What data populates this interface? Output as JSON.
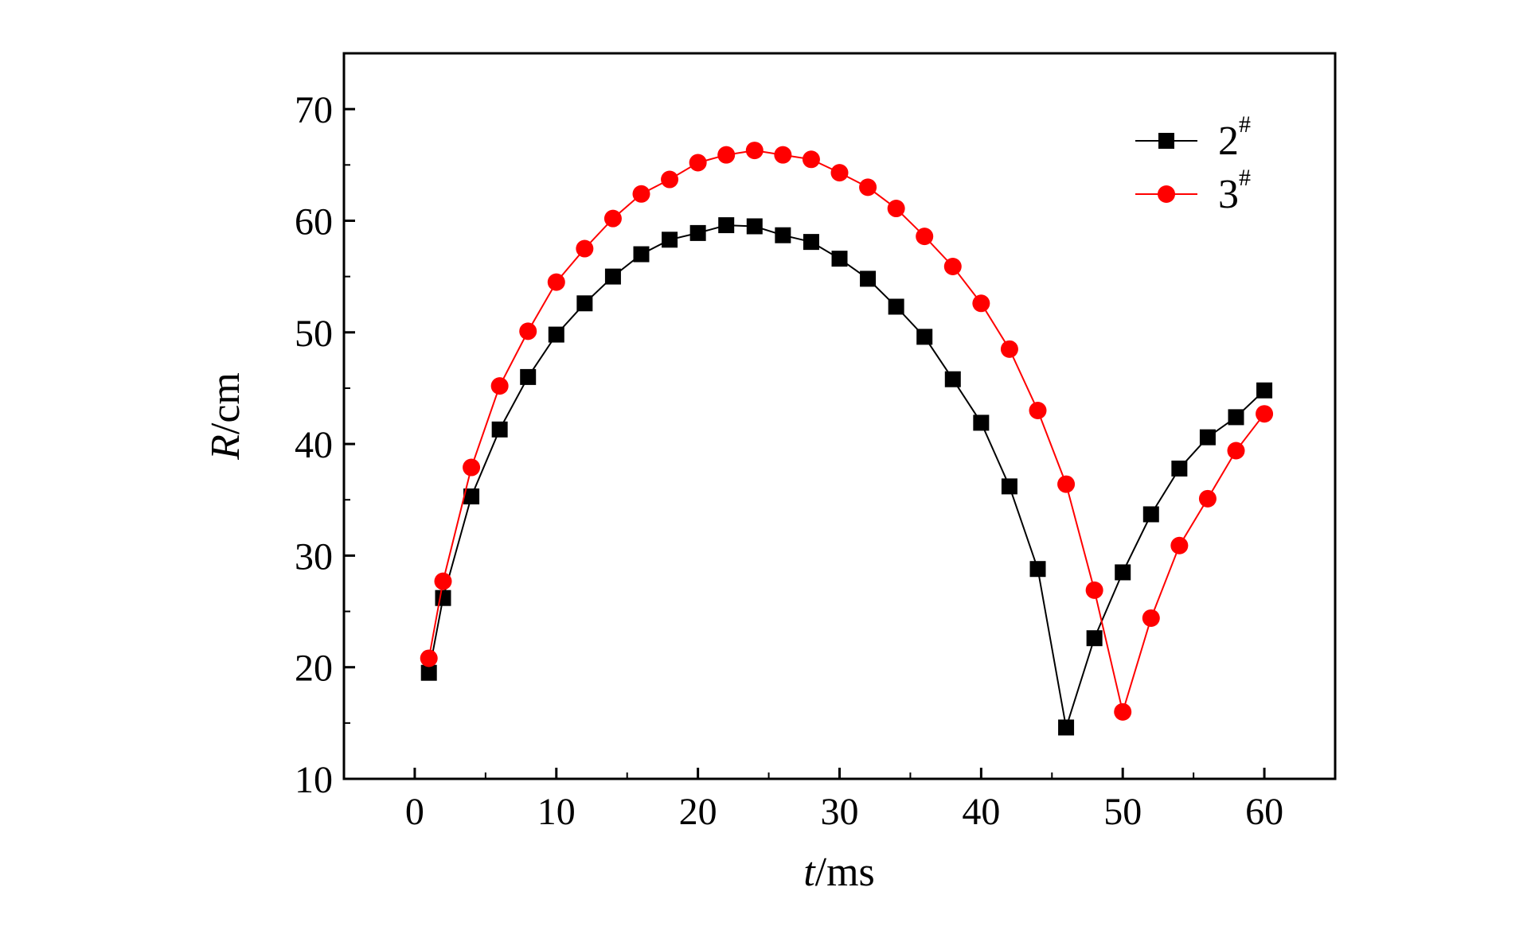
{
  "chart_data": {
    "type": "line",
    "xlabel": {
      "italic": "t",
      "rest": "/ms"
    },
    "ylabel": {
      "italic": "R",
      "rest": "/cm"
    },
    "xlim": [
      -5,
      65
    ],
    "ylim": [
      10,
      75
    ],
    "xticks": [
      0,
      10,
      20,
      30,
      40,
      50,
      60
    ],
    "yticks": [
      10,
      20,
      30,
      40,
      50,
      60,
      70
    ],
    "grid": false,
    "legend_position": "top-right",
    "series": [
      {
        "name": "2",
        "name_sup": "#",
        "color": "#000000",
        "marker": "square",
        "x": [
          1,
          2,
          4,
          6,
          8,
          10,
          12,
          14,
          16,
          18,
          20,
          22,
          24,
          26,
          28,
          30,
          32,
          34,
          36,
          38,
          40,
          42,
          44,
          46,
          48,
          50,
          52,
          54,
          56,
          58,
          60
        ],
        "y": [
          19.5,
          26.2,
          35.3,
          41.3,
          46.0,
          49.8,
          52.6,
          55.0,
          57.0,
          58.3,
          58.9,
          59.6,
          59.5,
          58.7,
          58.1,
          56.6,
          54.8,
          52.3,
          49.6,
          45.8,
          41.9,
          36.2,
          28.8,
          14.6,
          22.6,
          28.5,
          33.7,
          37.8,
          40.6,
          42.4,
          44.8
        ]
      },
      {
        "name": "3",
        "name_sup": "#",
        "color": "#ff0000",
        "marker": "circle",
        "x": [
          1,
          2,
          4,
          6,
          8,
          10,
          12,
          14,
          16,
          18,
          20,
          22,
          24,
          26,
          28,
          30,
          32,
          34,
          36,
          38,
          40,
          42,
          44,
          46,
          48,
          50,
          52,
          54,
          56,
          58,
          60
        ],
        "y": [
          20.8,
          27.7,
          37.9,
          45.2,
          50.1,
          54.5,
          57.5,
          60.2,
          62.4,
          63.7,
          65.2,
          65.9,
          66.3,
          65.9,
          65.5,
          64.3,
          63.0,
          61.1,
          58.6,
          55.9,
          52.6,
          48.5,
          43.0,
          36.4,
          26.9,
          16.0,
          24.4,
          30.9,
          35.1,
          39.4,
          42.7
        ]
      }
    ]
  }
}
